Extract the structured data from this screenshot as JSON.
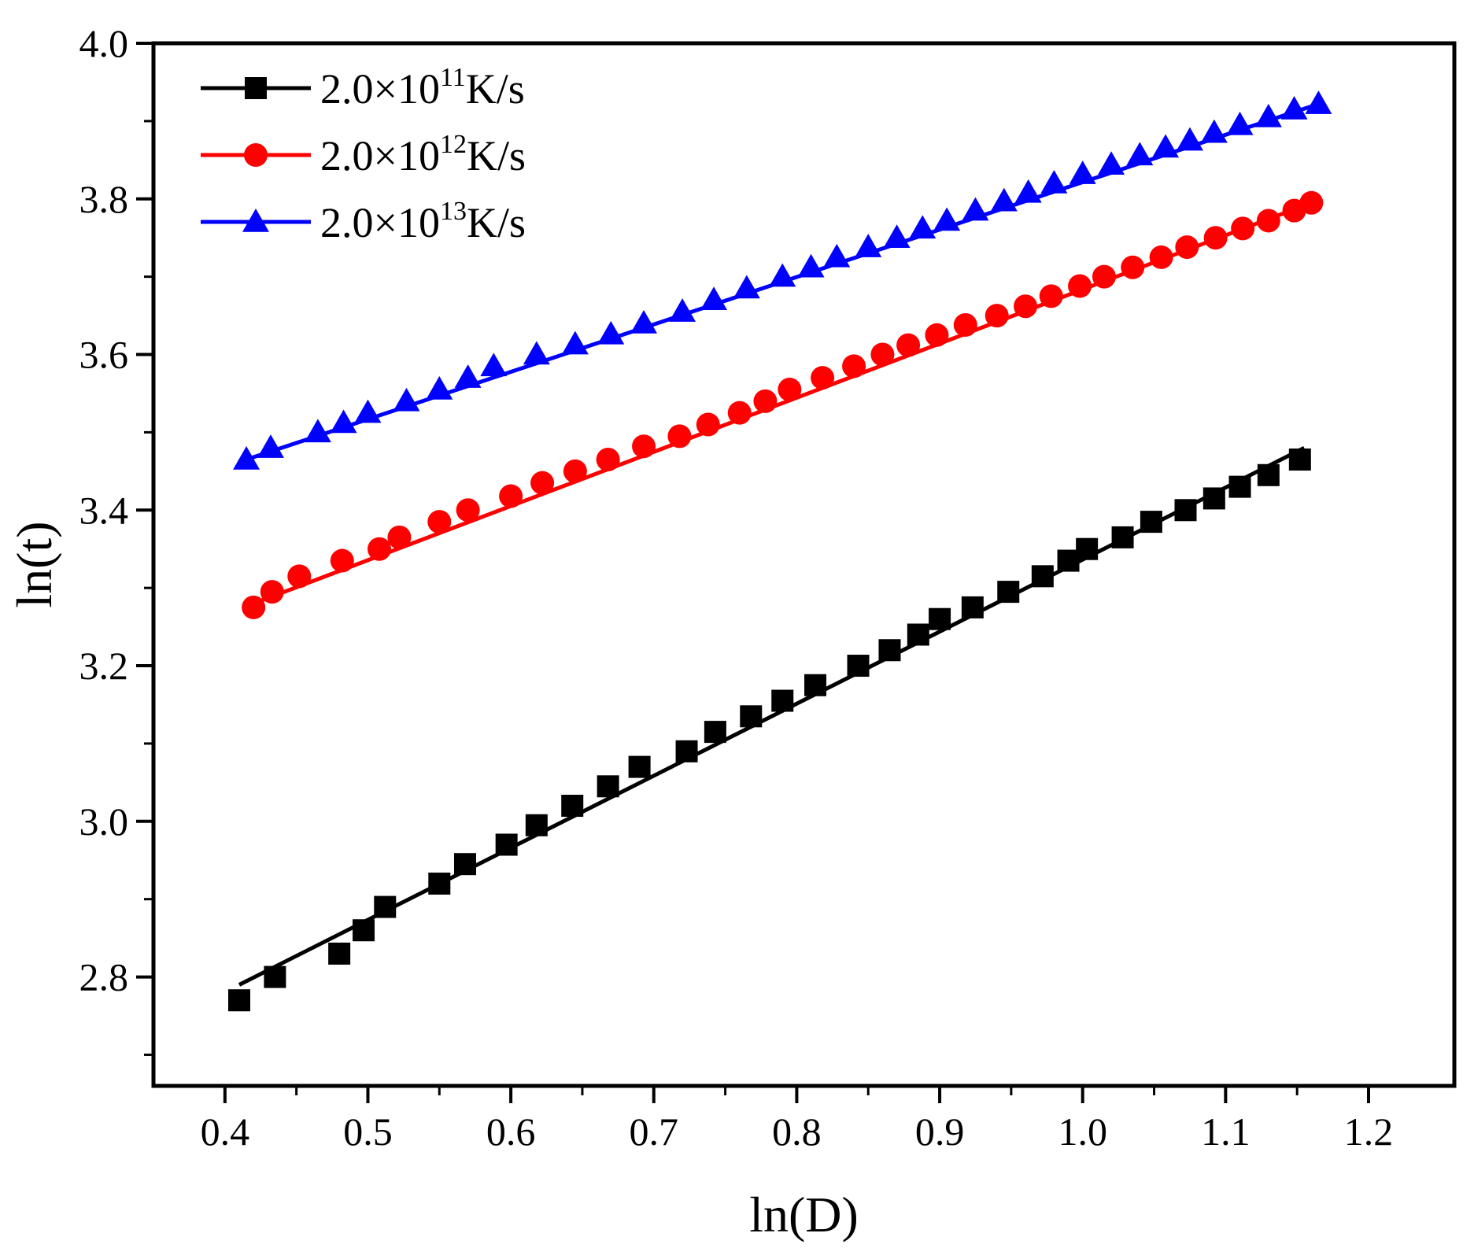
{
  "chart_data": {
    "type": "scatter",
    "title": "",
    "xlabel": "ln(D)",
    "ylabel": "ln(t)",
    "xlim": [
      0.35,
      1.26
    ],
    "ylim": [
      2.66,
      4.0
    ],
    "xticks": [
      0.4,
      0.5,
      0.6,
      0.7,
      0.8,
      0.9,
      1.0,
      1.1,
      1.2
    ],
    "xtick_labels": [
      "0.4",
      "0.5",
      "0.6",
      "0.7",
      "0.8",
      "0.9",
      "1.0",
      "1.1",
      "1.2"
    ],
    "yticks": [
      2.8,
      3.0,
      3.2,
      3.4,
      3.6,
      3.8,
      4.0
    ],
    "ytick_labels": [
      "2.8",
      "3.0",
      "3.2",
      "3.4",
      "3.6",
      "3.8",
      "4.0"
    ],
    "grid": false,
    "legend_position": "top-left",
    "series": [
      {
        "name": "2.0×10¹¹K/s",
        "label_base": "2.0×10",
        "label_exp": "11",
        "label_unit": "K/s",
        "color": "#000000",
        "marker": "square",
        "x": [
          0.41,
          0.435,
          0.48,
          0.497,
          0.512,
          0.55,
          0.568,
          0.597,
          0.618,
          0.643,
          0.668,
          0.69,
          0.723,
          0.743,
          0.768,
          0.79,
          0.813,
          0.843,
          0.865,
          0.885,
          0.9,
          0.923,
          0.948,
          0.972,
          0.99,
          1.003,
          1.028,
          1.048,
          1.072,
          1.092,
          1.11,
          1.13,
          1.152
        ],
        "y": [
          2.77,
          2.8,
          2.83,
          2.86,
          2.89,
          2.92,
          2.945,
          2.97,
          2.995,
          3.02,
          3.045,
          3.07,
          3.09,
          3.115,
          3.135,
          3.155,
          3.175,
          3.2,
          3.22,
          3.24,
          3.26,
          3.275,
          3.295,
          3.315,
          3.335,
          3.35,
          3.365,
          3.385,
          3.4,
          3.415,
          3.43,
          3.445,
          3.465
        ],
        "fit_x": [
          0.41,
          1.155
        ],
        "fit_y": [
          2.79,
          3.48
        ]
      },
      {
        "name": "2.0×10¹²K/s",
        "label_base": "2.0×10",
        "label_exp": "12",
        "label_unit": "K/s",
        "color": "#ff0000",
        "marker": "circle",
        "x": [
          0.42,
          0.433,
          0.452,
          0.482,
          0.508,
          0.522,
          0.55,
          0.57,
          0.6,
          0.622,
          0.645,
          0.668,
          0.693,
          0.718,
          0.738,
          0.76,
          0.778,
          0.795,
          0.818,
          0.84,
          0.86,
          0.878,
          0.898,
          0.918,
          0.94,
          0.96,
          0.978,
          0.998,
          1.015,
          1.035,
          1.055,
          1.073,
          1.093,
          1.112,
          1.13,
          1.148,
          1.16
        ],
        "y": [
          3.275,
          3.295,
          3.315,
          3.335,
          3.35,
          3.365,
          3.385,
          3.4,
          3.418,
          3.435,
          3.45,
          3.465,
          3.482,
          3.495,
          3.51,
          3.525,
          3.54,
          3.555,
          3.57,
          3.585,
          3.6,
          3.612,
          3.625,
          3.638,
          3.65,
          3.662,
          3.675,
          3.688,
          3.7,
          3.712,
          3.725,
          3.738,
          3.75,
          3.762,
          3.772,
          3.785,
          3.795
        ],
        "fit_x": [
          0.42,
          1.16
        ],
        "fit_y": [
          3.28,
          3.795
        ]
      },
      {
        "name": "2.0×10¹³K/s",
        "label_base": "2.0×10",
        "label_exp": "13",
        "label_unit": "K/s",
        "color": "#0000ff",
        "marker": "triangle",
        "x": [
          0.415,
          0.432,
          0.465,
          0.483,
          0.5,
          0.527,
          0.55,
          0.57,
          0.588,
          0.618,
          0.645,
          0.67,
          0.693,
          0.72,
          0.742,
          0.765,
          0.79,
          0.81,
          0.828,
          0.85,
          0.87,
          0.888,
          0.905,
          0.925,
          0.945,
          0.962,
          0.98,
          1.0,
          1.02,
          1.04,
          1.058,
          1.075,
          1.092,
          1.11,
          1.13,
          1.148,
          1.165
        ],
        "y": [
          3.465,
          3.48,
          3.5,
          3.512,
          3.525,
          3.54,
          3.555,
          3.57,
          3.585,
          3.6,
          3.613,
          3.626,
          3.64,
          3.655,
          3.67,
          3.685,
          3.7,
          3.712,
          3.725,
          3.738,
          3.75,
          3.762,
          3.772,
          3.785,
          3.797,
          3.808,
          3.82,
          3.832,
          3.844,
          3.856,
          3.866,
          3.875,
          3.885,
          3.895,
          3.905,
          3.915,
          3.922
        ],
        "fit_x": [
          0.415,
          1.165
        ],
        "fit_y": [
          3.465,
          3.922
        ]
      }
    ]
  }
}
